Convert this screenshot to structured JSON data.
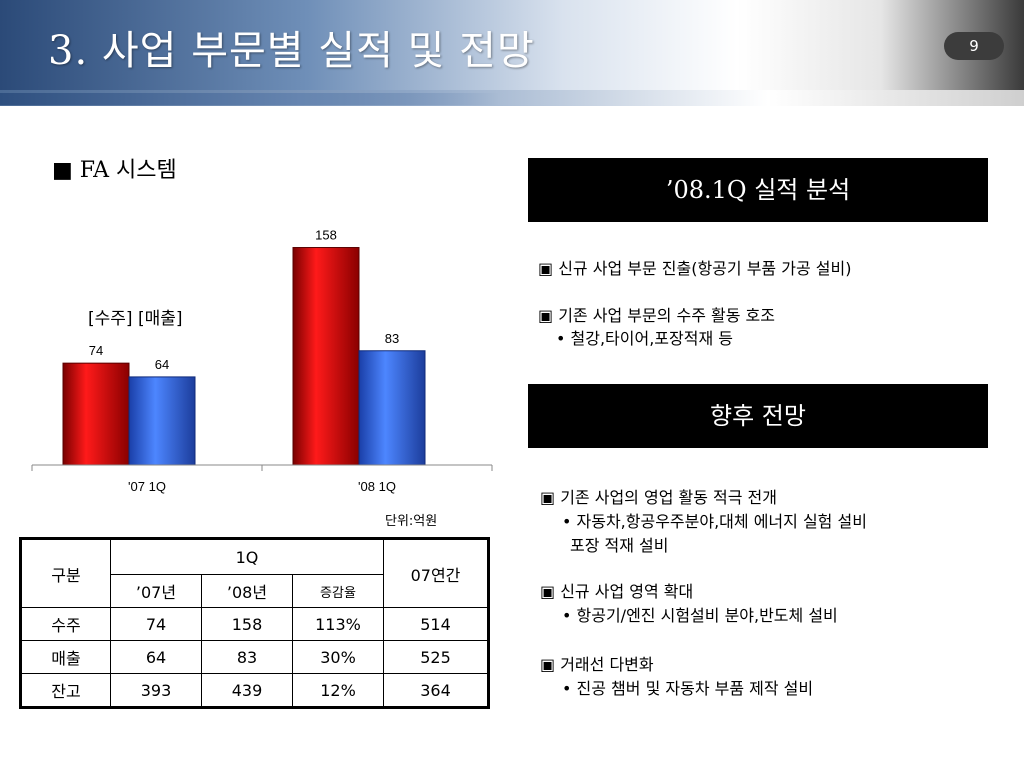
{
  "header": {
    "title": "3. 사업 부문별 실적 및 전망",
    "page_number": "9"
  },
  "section_label": "■ FA 시스템",
  "chart_label": "[수주] [매출]",
  "unit_label": "단위:억원",
  "chart_data": {
    "type": "bar",
    "categories": [
      "'07 1Q",
      "'08 1Q"
    ],
    "series": [
      {
        "name": "수주",
        "values": [
          74,
          158
        ]
      },
      {
        "name": "매출",
        "values": [
          64,
          83
        ]
      }
    ],
    "colors": [
      "#cc0000",
      "#2a5fd6"
    ],
    "ylim": [
      0,
      170
    ]
  },
  "table": {
    "head": {
      "category": "구분",
      "quarter": "1Q",
      "annual": "07연간",
      "y07": "’07년",
      "y08": "’08년",
      "change": "증감율"
    },
    "rows": [
      {
        "label": "수주",
        "y07": "74",
        "y08": "158",
        "change": "113%",
        "annual": "514"
      },
      {
        "label": "매출",
        "y07": "64",
        "y08": "83",
        "change": "30%",
        "annual": "525"
      },
      {
        "label": "잔고",
        "y07": "393",
        "y08": "439",
        "change": "12%",
        "annual": "364"
      }
    ]
  },
  "analysis": {
    "heading": "’08.1Q 실적 분석",
    "items": [
      {
        "title": "▣ 신규 사업 부문 진출(항공기 부품 가공 설비)"
      },
      {
        "title": "▣ 기존 사업 부문의 수주 활동 호조",
        "sub": "• 철강,타이어,포장적재 등"
      }
    ]
  },
  "outlook": {
    "heading": "향후 전망",
    "items": [
      {
        "title": "▣ 기존 사업의 영업 활동 적극 전개",
        "sub1": "• 자동차,항공우주분야,대체 에너지 실험 설비",
        "sub2": "포장 적재 설비"
      },
      {
        "title": "▣ 신규 사업 영역 확대",
        "sub1": "• 항공기/엔진 시험설비 분야,반도체 설비"
      },
      {
        "title": "▣ 거래선 다변화",
        "sub1": "• 진공 챔버 및 자동차 부품 제작 설비"
      }
    ]
  }
}
